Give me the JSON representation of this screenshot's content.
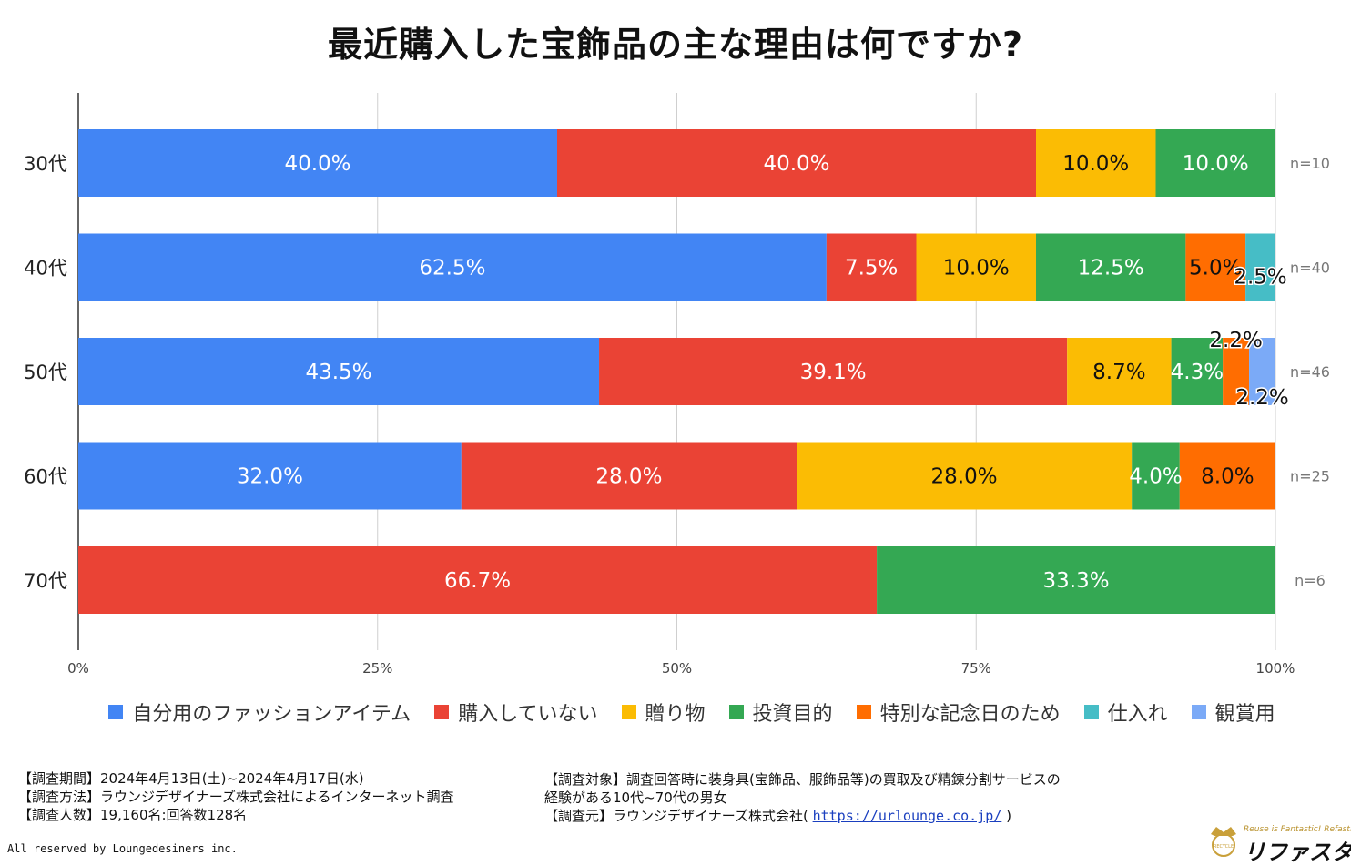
{
  "chart_data": {
    "type": "bar",
    "orientation": "horizontal",
    "stacked": true,
    "title": "最近購入した宝飾品の主な理由は何ですか?",
    "categories": [
      "30代",
      "40代",
      "50代",
      "60代",
      "70代"
    ],
    "sample_sizes": [
      "n=10",
      "n=40",
      "n=46",
      "n=25",
      "n=6"
    ],
    "series": [
      {
        "name": "自分用のファッションアイテム",
        "color": "#4285F4",
        "values": [
          40.0,
          62.5,
          43.5,
          32.0,
          0
        ]
      },
      {
        "name": "購入していない",
        "color": "#EA4335",
        "values": [
          40.0,
          7.5,
          39.1,
          28.0,
          66.7
        ]
      },
      {
        "name": "贈り物",
        "color": "#FBBC04",
        "values": [
          10.0,
          10.0,
          8.7,
          28.0,
          0
        ]
      },
      {
        "name": "投資目的",
        "color": "#34A853",
        "values": [
          10.0,
          12.5,
          4.3,
          4.0,
          33.3
        ]
      },
      {
        "name": "特別な記念日のため",
        "color": "#FF6D01",
        "values": [
          0,
          5.0,
          2.2,
          8.0,
          0
        ]
      },
      {
        "name": "仕入れ",
        "color": "#46BDC6",
        "values": [
          0,
          2.5,
          0,
          0,
          0
        ]
      },
      {
        "name": "観賞用",
        "color": "#7BAAF7",
        "values": [
          0,
          0,
          2.2,
          0,
          0
        ]
      }
    ],
    "x_ticks": [
      "0%",
      "25%",
      "50%",
      "75%",
      "100%"
    ],
    "xlim": [
      0,
      100
    ],
    "grid": true,
    "legend_position": "bottom"
  },
  "footnotes_left": [
    "【調査期間】2024年4月13日(土)~2024年4月17日(水)",
    "【調査方法】ラウンジデザイナーズ株式会社によるインターネット調査",
    "【調査人数】19,160名:回答数128名"
  ],
  "footnotes_right": {
    "line1": "【調査対象】調査回答時に装身具(宝飾品、服飾品等)の買取及び精錬分割サービスの",
    "line2": "経験がある10代~70代の男女",
    "source_prefix": "【調査元】ラウンジデザイナーズ株式会社(",
    "source_url": "https://urlounge.co.jp/",
    "source_suffix": ")"
  },
  "copyright": "All reserved by Loungedesiners inc.",
  "logo": {
    "tagline": "Reuse is Fantastic! Refasta",
    "wordmark": "リファスタ",
    "emblem_text": "RECYCLE"
  }
}
